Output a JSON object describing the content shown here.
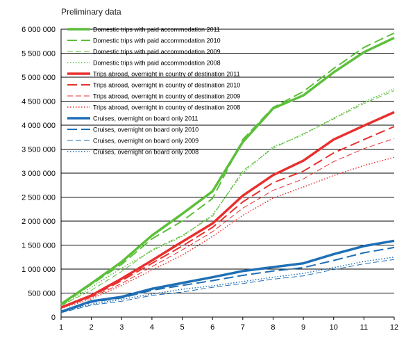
{
  "chart_data": {
    "type": "line",
    "subtitle": "Preliminary data",
    "x": [
      1,
      2,
      3,
      4,
      5,
      6,
      7,
      8,
      9,
      10,
      11,
      12
    ],
    "xlim": [
      1,
      12
    ],
    "ylim": [
      0,
      6000000
    ],
    "y_ticks": [
      0,
      500000,
      1000000,
      1500000,
      2000000,
      2500000,
      3000000,
      3500000,
      4000000,
      4500000,
      5000000,
      5500000,
      6000000
    ],
    "y_tick_labels": [
      "0",
      "500 000",
      "1 000 000",
      "1 500 000",
      "2 000 000",
      "2 500 000",
      "3 000 000",
      "3 500 000",
      "4 000 000",
      "4 500 000",
      "5 000 000",
      "5 500 000",
      "6 000 000"
    ],
    "x_tick_labels": [
      "1",
      "2",
      "3",
      "4",
      "5",
      "6",
      "7",
      "8",
      "9",
      "10",
      "11",
      "12"
    ],
    "grid": "horizontal",
    "legend_position": "top-left",
    "series": [
      {
        "name": "Domestic trips with paid accommodation 2011",
        "color": "#5cbf3a",
        "style": "solid-thick",
        "values": [
          270000,
          700000,
          1150000,
          1700000,
          2150000,
          2620000,
          3650000,
          4350000,
          4620000,
          5100000,
          5520000,
          5820000
        ]
      },
      {
        "name": "Domestic trips with paid accommodation 2010",
        "color": "#5cbf3a",
        "style": "dash-long",
        "values": [
          250000,
          680000,
          1100000,
          1630000,
          2000000,
          2470000,
          3700000,
          4370000,
          4700000,
          5180000,
          5620000,
          5920000
        ]
      },
      {
        "name": "Domestic trips with paid accommodation 2009",
        "color": "#5cbf3a",
        "style": "dash-thin",
        "values": [
          240000,
          560000,
          950000,
          1400000,
          1700000,
          2100000,
          3050000,
          3520000,
          3820000,
          4130000,
          4450000,
          4720000
        ]
      },
      {
        "name": "Domestic trips with paid accommodation 2008",
        "color": "#5cbf3a",
        "style": "dotted",
        "values": [
          230000,
          620000,
          1020000,
          1380000,
          1680000,
          2130000,
          3000000,
          3550000,
          3800000,
          4150000,
          4480000,
          4760000
        ]
      },
      {
        "name": "Trips abroad, overnight in country of destination 2011",
        "color": "#e8302e",
        "style": "solid-thick",
        "values": [
          200000,
          450000,
          800000,
          1180000,
          1570000,
          1950000,
          2530000,
          2960000,
          3260000,
          3700000,
          3990000,
          4270000
        ]
      },
      {
        "name": "Trips abroad, overnight in country of destination 2010",
        "color": "#e8302e",
        "style": "dash-long",
        "values": [
          200000,
          430000,
          760000,
          1120000,
          1480000,
          1870000,
          2400000,
          2800000,
          3040000,
          3420000,
          3700000,
          3970000
        ]
      },
      {
        "name": "Trips abroad, overnight in country of destination 2009",
        "color": "#e8302e",
        "style": "dash-thin",
        "values": [
          190000,
          410000,
          700000,
          1050000,
          1400000,
          1780000,
          2270000,
          2640000,
          2880000,
          3240000,
          3510000,
          3720000
        ]
      },
      {
        "name": "Trips abroad, overnight in country of destination 2008",
        "color": "#e8302e",
        "style": "dotted",
        "values": [
          180000,
          380000,
          660000,
          980000,
          1290000,
          1680000,
          2120000,
          2480000,
          2710000,
          2950000,
          3160000,
          3330000
        ]
      },
      {
        "name": "Cruises, overnight on board only 2011",
        "color": "#1f6fb5",
        "style": "solid-thick",
        "values": [
          110000,
          330000,
          420000,
          590000,
          710000,
          830000,
          960000,
          1040000,
          1120000,
          1310000,
          1480000,
          1590000
        ]
      },
      {
        "name": "Cruises, overnight on board only 2010",
        "color": "#1f6fb5",
        "style": "dash-long",
        "values": [
          100000,
          310000,
          400000,
          560000,
          660000,
          760000,
          870000,
          960000,
          1030000,
          1180000,
          1340000,
          1450000
        ]
      },
      {
        "name": "Cruises, overnight on board only 2009",
        "color": "#1f6fb5",
        "style": "dash-thin",
        "values": [
          90000,
          250000,
          330000,
          450000,
          520000,
          620000,
          700000,
          790000,
          860000,
          990000,
          1110000,
          1200000
        ]
      },
      {
        "name": "Cruises, overnight on board only 2008",
        "color": "#1f6fb5",
        "style": "dotted",
        "values": [
          100000,
          270000,
          370000,
          480000,
          580000,
          650000,
          740000,
          830000,
          910000,
          1030000,
          1160000,
          1250000
        ]
      }
    ]
  }
}
